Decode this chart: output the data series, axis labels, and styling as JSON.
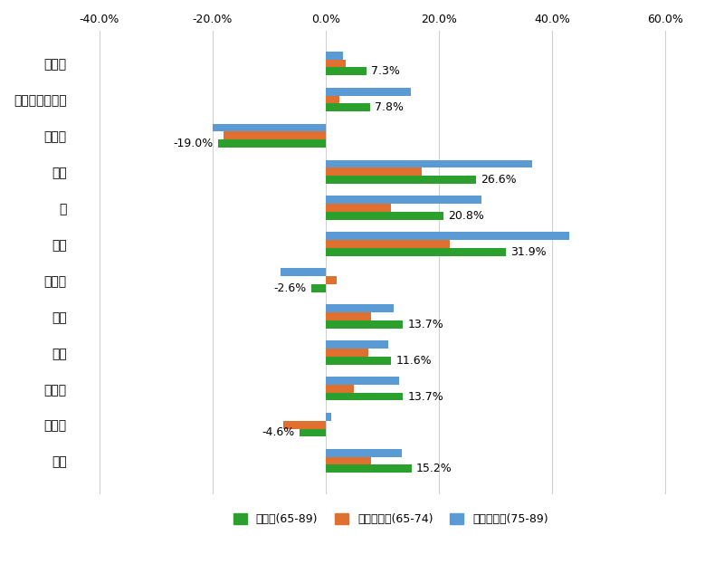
{
  "categories": [
    "食用油",
    "オリーブオイル",
    "ごま油",
    "砂糖",
    "塩",
    "食酢",
    "ポン酢",
    "醤油",
    "つゆ",
    "みりん",
    "料理酒",
    "味噌"
  ],
  "series": {
    "高齢者(65-89)": [
      7.3,
      7.8,
      -19.0,
      26.6,
      20.8,
      31.9,
      -2.6,
      13.7,
      11.6,
      13.7,
      -4.6,
      15.2
    ],
    "前期高齢者(65-74)": [
      3.5,
      2.5,
      -18.0,
      17.0,
      11.5,
      22.0,
      2.0,
      8.0,
      7.5,
      5.0,
      -7.5,
      8.0
    ],
    "後期高齢者(75-89)": [
      3.0,
      15.0,
      -20.0,
      36.5,
      27.5,
      43.0,
      -8.0,
      12.0,
      11.0,
      13.0,
      1.0,
      13.5
    ]
  },
  "colors": {
    "高齢者(65-89)": "#2ca02c",
    "前期高齢者(65-74)": "#e07030",
    "後期高齢者(75-89)": "#5b9bd5"
  },
  "xlim": [
    -45.0,
    68.0
  ],
  "xticks": [
    -40.0,
    -20.0,
    0.0,
    20.0,
    40.0,
    60.0
  ],
  "xticklabels": [
    "-40.0%",
    "-20.0%",
    "0.0%",
    "20.0%",
    "40.0%",
    "60.0%"
  ],
  "bar_height": 0.22
}
